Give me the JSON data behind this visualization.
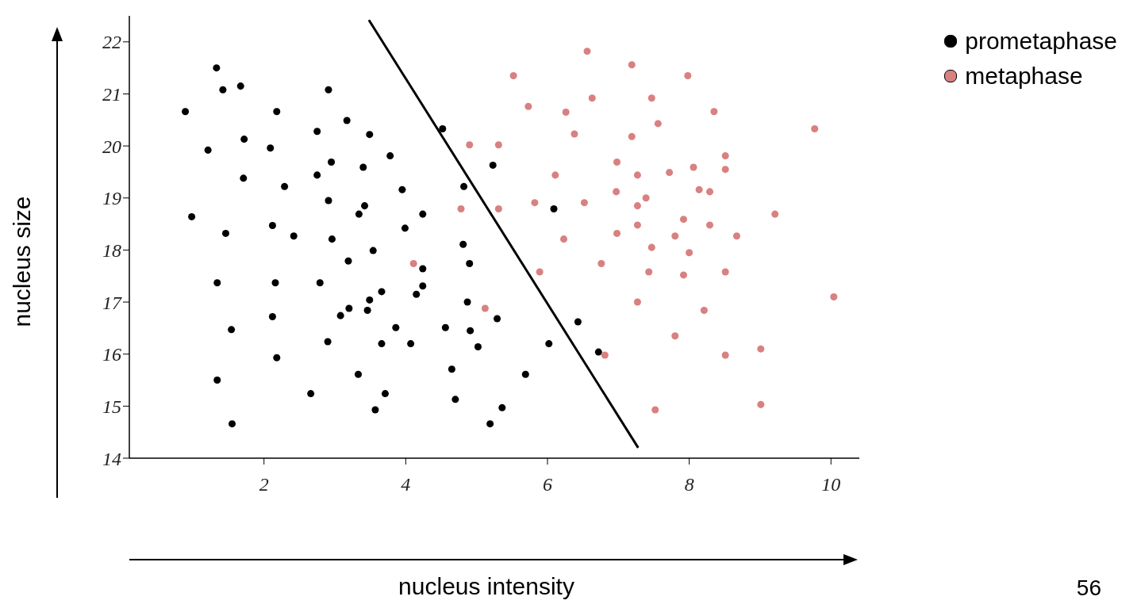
{
  "chart_data": {
    "type": "scatter",
    "xlabel": "nucleus intensity",
    "ylabel": "nucleus size",
    "xlim": [
      0.1,
      10.4
    ],
    "ylim": [
      14,
      22.5
    ],
    "xticks": [
      2,
      4,
      6,
      8,
      10
    ],
    "yticks": [
      14,
      15,
      16,
      17,
      18,
      19,
      20,
      21,
      22
    ],
    "legend": "top right",
    "marker": "circle",
    "annotations": [
      "56"
    ],
    "series": [
      {
        "name": "prometaphase",
        "color": "#000000",
        "x": [
          1.33,
          1.42,
          1.67,
          2.91,
          0.89,
          2.18,
          3.17,
          1.21,
          1.72,
          2.09,
          2.75,
          3.49,
          4.52,
          1.71,
          2.29,
          2.75,
          2.95,
          3.4,
          3.78,
          5.23,
          0.98,
          2.91,
          3.42,
          3.34,
          3.95,
          4.82,
          4.24,
          6.09,
          1.46,
          2.12,
          2.42,
          2.96,
          3.99,
          3.19,
          3.54,
          4.81,
          4.9,
          4.24,
          1.34,
          2.16,
          2.79,
          4.24,
          4.15,
          3.66,
          3.49,
          3.46,
          3.2,
          3.08,
          2.12,
          4.87,
          5.29,
          6.43,
          1.54,
          2.9,
          3.86,
          4.56,
          4.91,
          3.66,
          4.07,
          5.02,
          6.02,
          6.72,
          2.18,
          4.65,
          3.33,
          5.69,
          1.34,
          2.66,
          3.71,
          4.7,
          5.36,
          3.57,
          1.55,
          5.19
        ],
        "values": [
          21.5,
          21.08,
          21.15,
          21.08,
          20.66,
          20.66,
          20.49,
          19.92,
          20.13,
          19.96,
          20.28,
          20.22,
          20.33,
          19.38,
          19.22,
          19.44,
          19.69,
          19.59,
          19.81,
          19.63,
          18.64,
          18.95,
          18.85,
          18.69,
          19.16,
          19.22,
          18.69,
          18.79,
          18.32,
          18.47,
          18.27,
          18.21,
          18.42,
          17.79,
          17.99,
          18.11,
          17.74,
          17.64,
          17.37,
          17.37,
          17.37,
          17.31,
          17.15,
          17.2,
          17.04,
          16.84,
          16.88,
          16.74,
          16.72,
          17.0,
          16.68,
          16.62,
          16.47,
          16.24,
          16.51,
          16.51,
          16.45,
          16.2,
          16.2,
          16.14,
          16.2,
          16.04,
          15.93,
          15.71,
          15.61,
          15.61,
          15.5,
          15.24,
          15.24,
          15.13,
          14.97,
          14.93,
          14.66,
          14.66
        ]
      },
      {
        "name": "metaphase",
        "color": "#d98080",
        "x": [
          5.52,
          6.56,
          7.19,
          5.73,
          6.63,
          6.26,
          7.47,
          7.98,
          7.56,
          6.38,
          7.19,
          8.35,
          9.77,
          4.9,
          5.31,
          6.98,
          8.51,
          8.51,
          7.72,
          8.06,
          7.27,
          6.11,
          6.97,
          7.39,
          8.14,
          8.29,
          4.78,
          5.31,
          5.82,
          6.52,
          7.27,
          9.21,
          7.92,
          7.27,
          8.29,
          6.98,
          8.67,
          7.8,
          6.23,
          7.47,
          8.0,
          4.11,
          6.76,
          5.89,
          7.43,
          7.92,
          8.51,
          7.27,
          10.04,
          8.21,
          7.8,
          5.12,
          6.81,
          8.51,
          9.01,
          7.52,
          9.01
        ],
        "values": [
          21.35,
          21.82,
          21.56,
          20.76,
          20.92,
          20.65,
          20.92,
          21.35,
          20.43,
          20.23,
          20.18,
          20.66,
          20.33,
          20.02,
          20.02,
          19.69,
          19.81,
          19.55,
          19.49,
          19.59,
          19.44,
          19.44,
          19.12,
          19.0,
          19.16,
          19.12,
          18.79,
          18.79,
          18.91,
          18.91,
          18.85,
          18.69,
          18.59,
          18.48,
          18.48,
          18.32,
          18.27,
          18.27,
          18.21,
          18.05,
          17.95,
          17.74,
          17.74,
          17.58,
          17.58,
          17.52,
          17.58,
          17.0,
          17.1,
          16.84,
          16.35,
          16.88,
          15.98,
          15.98,
          16.1,
          14.93,
          15.03
        ]
      },
      {
        "type": "line",
        "marker": "none",
        "color": "#000000",
        "x": [
          3.48,
          7.28
        ],
        "values": [
          22.42,
          14.2
        ]
      }
    ]
  }
}
